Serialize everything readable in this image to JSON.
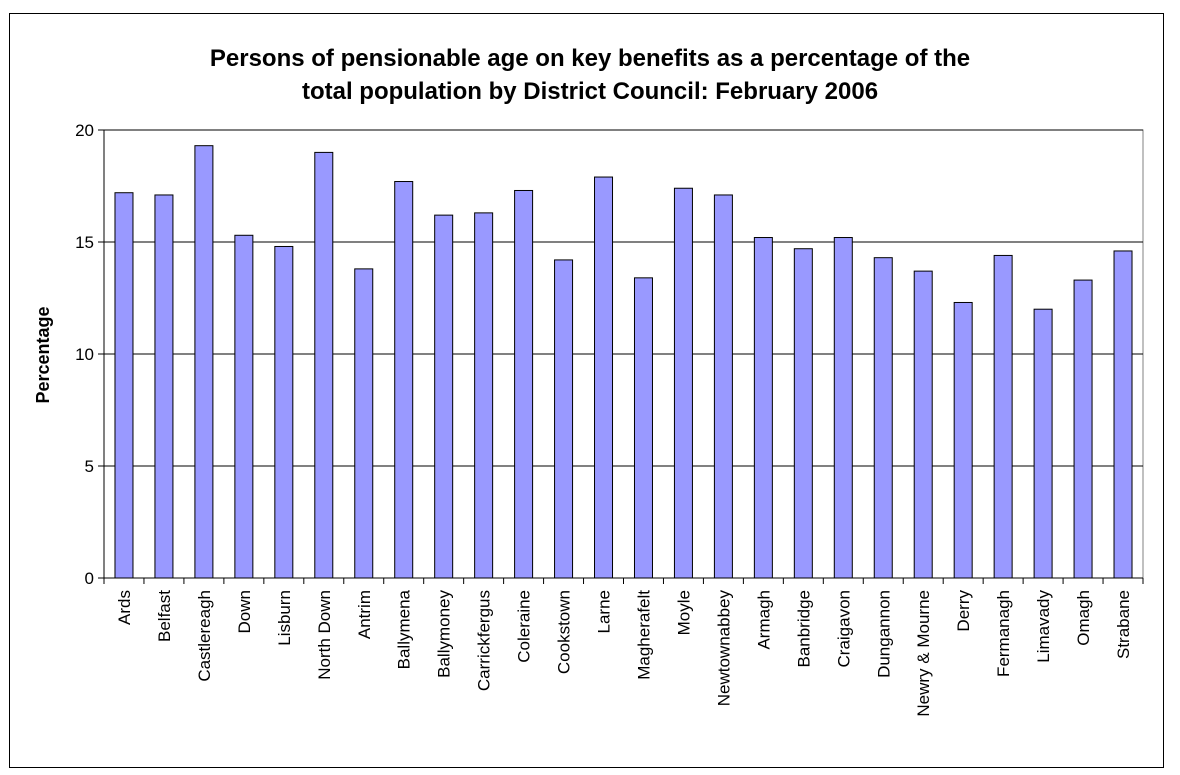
{
  "chart_data": {
    "type": "bar",
    "title_lines": [
      "Persons of pensionable age on key benefits as a percentage of the",
      "total population by District Council: February 2006"
    ],
    "xlabel": "",
    "ylabel": "Percentage",
    "ylim": [
      0,
      20
    ],
    "yticks": [
      0,
      5,
      10,
      15,
      20
    ],
    "grid": true,
    "legend": false,
    "colors": {
      "bar_fill": "#9999ff",
      "bar_stroke": "#000000",
      "plot_background": "#ffffff",
      "gridline": "#000000"
    },
    "categories": [
      "Ards",
      "Belfast",
      "Castlereagh",
      "Down",
      "Lisburn",
      "North Down",
      "Antrim",
      "Ballymena",
      "Ballymoney",
      "Carrickfergus",
      "Coleraine",
      "Cookstown",
      "Larne",
      "Magherafelt",
      "Moyle",
      "Newtownabbey",
      "Armagh",
      "Banbridge",
      "Craigavon",
      "Dungannon",
      "Newry & Mourne",
      "Derry",
      "Fermanagh",
      "Limavady",
      "Omagh",
      "Strabane"
    ],
    "values": [
      17.2,
      17.1,
      19.3,
      15.3,
      14.8,
      19.0,
      13.8,
      17.7,
      16.2,
      16.3,
      17.3,
      14.2,
      17.9,
      13.4,
      17.4,
      17.1,
      15.2,
      14.7,
      15.2,
      14.3,
      13.7,
      12.3,
      14.4,
      12.0,
      13.3,
      14.6
    ]
  }
}
